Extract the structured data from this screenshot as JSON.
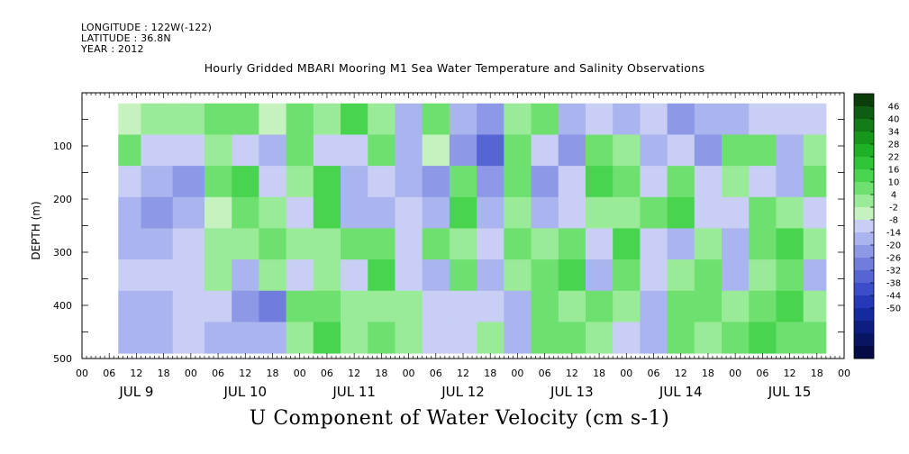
{
  "header": {
    "longitude": "LONGITUDE : 122W(-122)",
    "latitude": "LATITUDE : 36.8N",
    "year": "YEAR : 2012"
  },
  "chart_data": {
    "type": "heatmap",
    "title": "Hourly Gridded MBARI Mooring M1 Sea Water Temperature and Salinity Observations",
    "xlabel": "U Component of Water Velocity (cm s-1)",
    "ylabel": "DEPTH (m)",
    "y_axis": {
      "range": [
        500,
        0
      ],
      "ticks": [
        100,
        200,
        300,
        400,
        500
      ],
      "inverted": true,
      "data_range": [
        20,
        490
      ]
    },
    "x_axis": {
      "hour_ticks": [
        "00",
        "06",
        "12",
        "18",
        "00",
        "06",
        "12",
        "18",
        "00",
        "06",
        "12",
        "18",
        "00",
        "06",
        "12",
        "18",
        "00",
        "06",
        "12",
        "18",
        "00",
        "06",
        "12",
        "18",
        "00",
        "06",
        "12",
        "18",
        "00"
      ],
      "day_labels": [
        "JUL  9",
        "JUL 10",
        "JUL 11",
        "JUL 12",
        "JUL 13",
        "JUL 14",
        "JUL 15"
      ],
      "data_start_hour": 8,
      "data_end_hour": 164
    },
    "colorbar": {
      "levels": [
        "46",
        "40",
        "34",
        "28",
        "22",
        "16",
        "10",
        "4",
        "-2",
        "-8",
        "-14",
        "-20",
        "-26",
        "-32",
        "-38",
        "-44",
        "-50"
      ],
      "colors": [
        "#0b3d0b",
        "#0f5d12",
        "#127a17",
        "#17961c",
        "#1eb025",
        "#2fc437",
        "#49d44f",
        "#6ee070",
        "#9aeb98",
        "#c6f2c0",
        "#c9cff4",
        "#aab4ee",
        "#8d98e6",
        "#707ddd",
        "#5565d4",
        "#3b4dc8",
        "#2638b8",
        "#162aa0",
        "#0d1e80",
        "#081563",
        "#040b45"
      ]
    },
    "bands": [
      {
        "hours": [
          8,
          13
        ],
        "u": [
          2,
          10,
          -6,
          -10,
          -12,
          -8,
          -14,
          -10
        ]
      },
      {
        "hours": [
          13,
          20
        ],
        "u": [
          8,
          -8,
          -12,
          -16,
          -10,
          -6,
          -12,
          -14
        ]
      },
      {
        "hours": [
          20,
          27
        ],
        "u": [
          6,
          -4,
          -20,
          -14,
          -6,
          -8,
          -6,
          -4
        ]
      },
      {
        "hours": [
          27,
          33
        ],
        "u": [
          10,
          4,
          12,
          -2,
          8,
          6,
          -8,
          -10
        ]
      },
      {
        "hours": [
          33,
          39
        ],
        "u": [
          14,
          -6,
          16,
          10,
          4,
          -12,
          -18,
          -10
        ]
      },
      {
        "hours": [
          39,
          45
        ],
        "u": [
          -2,
          -10,
          -4,
          6,
          14,
          8,
          -22,
          -14
        ]
      },
      {
        "hours": [
          45,
          51
        ],
        "u": [
          12,
          10,
          4,
          -6,
          8,
          -4,
          10,
          8
        ]
      },
      {
        "hours": [
          51,
          57
        ],
        "u": [
          4,
          -8,
          20,
          18,
          6,
          4,
          14,
          16
        ]
      },
      {
        "hours": [
          57,
          63
        ],
        "u": [
          18,
          -6,
          -10,
          -14,
          10,
          -8,
          6,
          4
        ]
      },
      {
        "hours": [
          63,
          69
        ],
        "u": [
          8,
          12,
          -6,
          -12,
          14,
          18,
          4,
          12
        ]
      },
      {
        "hours": [
          69,
          75
        ],
        "u": [
          -12,
          -14,
          -10,
          -6,
          -8,
          -4,
          8,
          6
        ]
      },
      {
        "hours": [
          75,
          81
        ],
        "u": [
          14,
          -2,
          -16,
          -14,
          12,
          -12,
          -4,
          -8
        ]
      },
      {
        "hours": [
          81,
          87
        ],
        "u": [
          -10,
          -18,
          10,
          16,
          8,
          10,
          -6,
          -8
        ]
      },
      {
        "hours": [
          87,
          93
        ],
        "u": [
          -20,
          -28,
          -18,
          -12,
          -8,
          -14,
          -6,
          4
        ]
      },
      {
        "hours": [
          93,
          99
        ],
        "u": [
          6,
          14,
          10,
          4,
          10,
          6,
          -12,
          -10
        ]
      },
      {
        "hours": [
          99,
          105
        ],
        "u": [
          12,
          -6,
          -18,
          -14,
          6,
          10,
          14,
          10
        ]
      },
      {
        "hours": [
          105,
          111
        ],
        "u": [
          -14,
          -18,
          -8,
          -4,
          12,
          16,
          8,
          10
        ]
      },
      {
        "hours": [
          111,
          117
        ],
        "u": [
          -8,
          10,
          16,
          8,
          -6,
          -10,
          12,
          8
        ]
      },
      {
        "hours": [
          117,
          123
        ],
        "u": [
          -12,
          6,
          14,
          8,
          16,
          10,
          4,
          -6
        ]
      },
      {
        "hours": [
          123,
          129
        ],
        "u": [
          -6,
          -10,
          -8,
          10,
          -8,
          -4,
          -10,
          -14
        ]
      },
      {
        "hours": [
          129,
          135
        ],
        "u": [
          -16,
          -8,
          12,
          16,
          -10,
          6,
          14,
          10
        ]
      },
      {
        "hours": [
          135,
          141
        ],
        "u": [
          -14,
          -20,
          -6,
          -8,
          4,
          10,
          12,
          8
        ]
      },
      {
        "hours": [
          141,
          147
        ],
        "u": [
          -10,
          14,
          8,
          -6,
          -12,
          -14,
          6,
          10
        ]
      },
      {
        "hours": [
          147,
          153
        ],
        "u": [
          -6,
          10,
          -8,
          14,
          12,
          4,
          14,
          18
        ]
      },
      {
        "hours": [
          153,
          159
        ],
        "u": [
          -4,
          -12,
          -14,
          6,
          16,
          12,
          20,
          14
        ]
      },
      {
        "hours": [
          159,
          164
        ],
        "u": [
          -8,
          8,
          12,
          -6,
          4,
          -10,
          8,
          12
        ]
      }
    ]
  }
}
